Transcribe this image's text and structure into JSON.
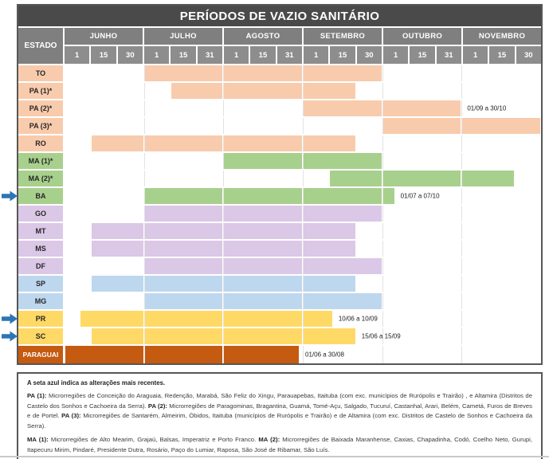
{
  "title": "PERÍODOS DE VAZIO SANITÁRIO",
  "colors": {
    "title-bg": "#4A4A4A",
    "header-bg": "#7F7F7F",
    "subheader-bg": "#8D8D8D",
    "table-border": "#575757",
    "gridline": "#E2E2E2",
    "arrow": "#2E75B6",
    "peach": "#F8CBAD",
    "green": "#A8D08D",
    "purple": "#DBC7E6",
    "blue": "#BDD7EE",
    "yellow": "#FFD966",
    "darkorange": "#C55A11"
  },
  "header": {
    "estado": "ESTADO",
    "months": [
      {
        "name": "JUNHO",
        "days": [
          "1",
          "15",
          "30"
        ]
      },
      {
        "name": "JULHO",
        "days": [
          "1",
          "15",
          "31"
        ]
      },
      {
        "name": "AGOSTO",
        "days": [
          "1",
          "15",
          "31"
        ]
      },
      {
        "name": "SETEMBRO",
        "days": [
          "1",
          "15",
          "30"
        ]
      },
      {
        "name": "OUTUBRO",
        "days": [
          "1",
          "15",
          "31"
        ]
      },
      {
        "name": "NOVEMBRO",
        "days": [
          "1",
          "15",
          "30"
        ]
      }
    ]
  },
  "chart_data": {
    "type": "gantt",
    "title": "PERÍODOS DE VAZIO SANITÁRIO",
    "x_axis": "months June (0) through November (6), each month split into thirds labeled 1 / 15 / 30-31",
    "x_range": [
      0,
      6
    ],
    "rows": [
      {
        "estado": "TO",
        "group": "peach",
        "start": 1.0,
        "end": 4.0
      },
      {
        "estado": "PA (1)*",
        "group": "peach",
        "start": 1.33,
        "end": 3.67
      },
      {
        "estado": "PA (2)*",
        "group": "peach",
        "start": 3.0,
        "end": 5.0,
        "label": "01/09 a 30/10"
      },
      {
        "estado": "PA (3)*",
        "group": "peach",
        "start": 4.0,
        "end": 6.0
      },
      {
        "estado": "RO",
        "group": "peach",
        "start": 0.33,
        "end": 3.67
      },
      {
        "estado": "MA (1)*",
        "group": "green",
        "start": 2.0,
        "end": 4.0
      },
      {
        "estado": "MA (2)*",
        "group": "green",
        "start": 3.33,
        "end": 5.67
      },
      {
        "estado": "BA",
        "group": "green",
        "start": 1.0,
        "end": 4.16,
        "label": "01/07 a 07/10",
        "arrow": true
      },
      {
        "estado": "GO",
        "group": "purple",
        "start": 1.0,
        "end": 4.0
      },
      {
        "estado": "MT",
        "group": "purple",
        "start": 0.33,
        "end": 3.67
      },
      {
        "estado": "MS",
        "group": "purple",
        "start": 0.33,
        "end": 3.67
      },
      {
        "estado": "DF",
        "group": "purple",
        "start": 1.0,
        "end": 4.0
      },
      {
        "estado": "SP",
        "group": "blue",
        "start": 0.33,
        "end": 3.67
      },
      {
        "estado": "MG",
        "group": "blue",
        "start": 1.0,
        "end": 4.0
      },
      {
        "estado": "PR",
        "group": "yellow",
        "start": 0.19,
        "end": 3.38,
        "label": "10/06 a 10/09",
        "arrow": true
      },
      {
        "estado": "SC",
        "group": "yellow",
        "start": 0.33,
        "end": 3.67,
        "label": "15/06 a 15/09",
        "arrow": true
      },
      {
        "estado": "PARAGUAI",
        "group": "darkorange",
        "start": 0.0,
        "end": 2.96,
        "label": "01/06 a 30/08",
        "label_white": true
      }
    ]
  },
  "footer": {
    "intro": "A seta azul indica as alterações mais recentes.",
    "paragraphs": [
      [
        {
          "b": "PA (1):"
        },
        {
          "t": " Microrregiões de Conceição do Araguaia, Redenção, Marabá, São Feliz do Xingu, Parauapebas, Itaituba (com exc. municípios de Rurópolis e Trairão) , e Altamira (Distritos  de Castelo dos Sonhos e Cachoeira da Serra). "
        },
        {
          "b": "PA (2):"
        },
        {
          "t": " Microrregiões de Paragominas, Bragantina, Guamá, Tomé-Açu, Salgado, Tucuruí, Castanhal, Arari, Belém, Cametá, Furos de Breves e de Portel. "
        },
        {
          "b": "PA (3):"
        },
        {
          "t": " Microrregiões de Santarém, Almeirim, Óbidos, Itaituba (municípios de Rurópolis e Trairão) e de Altamira (com exc. Distritos de Castelo de Sonhos e Cachoeira da Serra)."
        }
      ],
      [
        {
          "b": "MA (1):"
        },
        {
          "t": " Microrregiões  de Alto Mearim, Grajaú, Balsas, Imperatriz e Porto Franco. "
        },
        {
          "b": "MA (2):"
        },
        {
          "t": " Microrregiões de Baixada Maranhense, Caxias, Chapadinha, Codó, Coelho Neto, Gurupi, Itapecuru Mirim, Pindaré, Presidente Dutra, Rosário, Paço do Lumiar, Raposa, São José de Ribamar, São Luís."
        }
      ]
    ]
  }
}
